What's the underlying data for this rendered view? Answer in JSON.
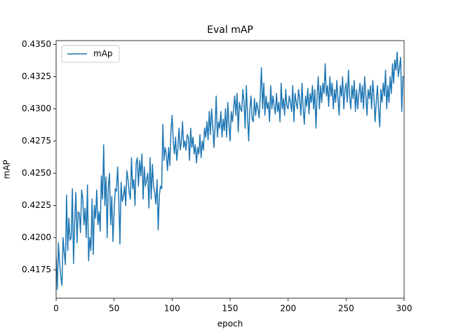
{
  "chart_data": {
    "type": "line",
    "title": "Eval mAP",
    "x_label": "epoch",
    "y_label": "mAP",
    "legend": "upper left",
    "grid": false,
    "xlim": [
      0,
      300
    ],
    "xticks": [
      0,
      50,
      100,
      150,
      200,
      250,
      300
    ],
    "ylim": [
      0.4153,
      0.4353
    ],
    "yticks": [
      0.4175,
      {
        "value": 0.42,
        "label": "0.4200"
      },
      0.4225,
      {
        "value": 0.425,
        "label": "0.4250"
      },
      0.4275,
      {
        "value": 0.43,
        "label": "0.4300"
      },
      0.4325,
      {
        "value": 0.435,
        "label": "0.4350"
      }
    ],
    "x": [
      0,
      1,
      2,
      3,
      4,
      5,
      6,
      7,
      8,
      9,
      10,
      11,
      12,
      13,
      14,
      15,
      16,
      17,
      18,
      19,
      20,
      21,
      22,
      23,
      24,
      25,
      26,
      27,
      28,
      29,
      30,
      31,
      32,
      33,
      34,
      35,
      36,
      37,
      38,
      39,
      40,
      41,
      42,
      43,
      44,
      45,
      46,
      47,
      48,
      49,
      50,
      51,
      52,
      53,
      54,
      55,
      56,
      57,
      58,
      59,
      60,
      61,
      62,
      63,
      64,
      65,
      66,
      67,
      68,
      69,
      70,
      71,
      72,
      73,
      74,
      75,
      76,
      77,
      78,
      79,
      80,
      81,
      82,
      83,
      84,
      85,
      86,
      87,
      88,
      89,
      90,
      91,
      92,
      93,
      94,
      95,
      96,
      97,
      98,
      99,
      100,
      101,
      102,
      103,
      104,
      105,
      106,
      107,
      108,
      109,
      110,
      111,
      112,
      113,
      114,
      115,
      116,
      117,
      118,
      119,
      120,
      121,
      122,
      123,
      124,
      125,
      126,
      127,
      128,
      129,
      130,
      131,
      132,
      133,
      134,
      135,
      136,
      137,
      138,
      139,
      140,
      141,
      142,
      143,
      144,
      145,
      146,
      147,
      148,
      149,
      150,
      151,
      152,
      153,
      154,
      155,
      156,
      157,
      158,
      159,
      160,
      161,
      162,
      163,
      164,
      165,
      166,
      167,
      168,
      169,
      170,
      171,
      172,
      173,
      174,
      175,
      176,
      177,
      178,
      179,
      180,
      181,
      182,
      183,
      184,
      185,
      186,
      187,
      188,
      189,
      190,
      191,
      192,
      193,
      194,
      195,
      196,
      197,
      198,
      199,
      200,
      201,
      202,
      203,
      204,
      205,
      206,
      207,
      208,
      209,
      210,
      211,
      212,
      213,
      214,
      215,
      216,
      217,
      218,
      219,
      220,
      221,
      222,
      223,
      224,
      225,
      226,
      227,
      228,
      229,
      230,
      231,
      232,
      233,
      234,
      235,
      236,
      237,
      238,
      239,
      240,
      241,
      242,
      243,
      244,
      245,
      246,
      247,
      248,
      249,
      250,
      251,
      252,
      253,
      254,
      255,
      256,
      257,
      258,
      259,
      260,
      261,
      262,
      263,
      264,
      265,
      266,
      267,
      268,
      269,
      270,
      271,
      272,
      273,
      274,
      275,
      276,
      277,
      278,
      279,
      280,
      281,
      282,
      283,
      284,
      285,
      286,
      287,
      288,
      289,
      290,
      291,
      292,
      293,
      294,
      295,
      296,
      297,
      298,
      299,
      300
    ],
    "series": [
      {
        "name": "mAp",
        "color": "#1f77b4",
        "values": [
          0.4185,
          0.416,
          0.4196,
          0.418,
          0.417,
          0.4163,
          0.42,
          0.4188,
          0.4179,
          0.4233,
          0.419,
          0.4215,
          0.4198,
          0.42,
          0.4238,
          0.418,
          0.4212,
          0.4235,
          0.4196,
          0.422,
          0.4219,
          0.4204,
          0.4237,
          0.423,
          0.421,
          0.4223,
          0.42,
          0.4241,
          0.4182,
          0.42,
          0.419,
          0.423,
          0.4187,
          0.4225,
          0.4215,
          0.4237,
          0.421,
          0.422,
          0.4205,
          0.4248,
          0.423,
          0.4272,
          0.4225,
          0.4247,
          0.42,
          0.424,
          0.425,
          0.421,
          0.4232,
          0.4197,
          0.422,
          0.4238,
          0.4236,
          0.4255,
          0.423,
          0.4195,
          0.4243,
          0.4228,
          0.4232,
          0.424,
          0.4225,
          0.4252,
          0.4245,
          0.4235,
          0.423,
          0.4262,
          0.4238,
          0.4245,
          0.4225,
          0.4258,
          0.4262,
          0.424,
          0.426,
          0.4248,
          0.4265,
          0.423,
          0.4255,
          0.424,
          0.4245,
          0.425,
          0.4223,
          0.4262,
          0.423,
          0.4257,
          0.424,
          0.4235,
          0.4226,
          0.4245,
          0.4206,
          0.4233,
          0.424,
          0.4238,
          0.4288,
          0.426,
          0.427,
          0.4265,
          0.4252,
          0.427,
          0.4256,
          0.4283,
          0.4295,
          0.4275,
          0.4265,
          0.4278,
          0.426,
          0.427,
          0.4285,
          0.4268,
          0.4275,
          0.429,
          0.427,
          0.4275,
          0.4268,
          0.428,
          0.4278,
          0.426,
          0.4285,
          0.427,
          0.4278,
          0.4265,
          0.4272,
          0.4258,
          0.427,
          0.4265,
          0.428,
          0.4262,
          0.4275,
          0.4268,
          0.4285,
          0.4278,
          0.429,
          0.4276,
          0.4298,
          0.428,
          0.43,
          0.4288,
          0.427,
          0.4285,
          0.431,
          0.4278,
          0.429,
          0.4285,
          0.4298,
          0.4278,
          0.4292,
          0.4283,
          0.43,
          0.4278,
          0.4305,
          0.4288,
          0.4275,
          0.4298,
          0.429,
          0.43,
          0.431,
          0.4295,
          0.4312,
          0.4282,
          0.4305,
          0.43,
          0.4298,
          0.4315,
          0.4305,
          0.4285,
          0.4318,
          0.4295,
          0.4275,
          0.43,
          0.431,
          0.4292,
          0.429,
          0.4308,
          0.4295,
          0.4305,
          0.43,
          0.4293,
          0.431,
          0.4332,
          0.43,
          0.432,
          0.4295,
          0.431,
          0.43,
          0.4305,
          0.429,
          0.4318,
          0.43,
          0.431,
          0.4302,
          0.4296,
          0.4312,
          0.4298,
          0.4305,
          0.429,
          0.432,
          0.43,
          0.4308,
          0.4295,
          0.4315,
          0.4302,
          0.43,
          0.431,
          0.4305,
          0.4298,
          0.4318,
          0.429,
          0.4312,
          0.4305,
          0.43,
          0.4315,
          0.4308,
          0.4295,
          0.432,
          0.43,
          0.4288,
          0.431,
          0.4302,
          0.4316,
          0.4296,
          0.4312,
          0.4305,
          0.4318,
          0.43,
          0.4315,
          0.4285,
          0.431,
          0.4325,
          0.43,
          0.4318,
          0.4305,
          0.432,
          0.4312,
          0.4335,
          0.431,
          0.4318,
          0.4302,
          0.4325,
          0.431,
          0.432,
          0.43,
          0.4315,
          0.4305,
          0.4322,
          0.4308,
          0.4295,
          0.4318,
          0.431,
          0.4325,
          0.43,
          0.4315,
          0.432,
          0.4305,
          0.433,
          0.431,
          0.43,
          0.4318,
          0.4308,
          0.4322,
          0.4298,
          0.4315,
          0.43,
          0.4312,
          0.432,
          0.4305,
          0.4318,
          0.43,
          0.4325,
          0.431,
          0.4295,
          0.4315,
          0.4308,
          0.4318,
          0.43,
          0.4322,
          0.431,
          0.429,
          0.4305,
          0.4318,
          0.43,
          0.4286,
          0.4315,
          0.4305,
          0.432,
          0.431,
          0.433,
          0.43,
          0.4318,
          0.4305,
          0.4325,
          0.4312,
          0.4335,
          0.432,
          0.4338,
          0.433,
          0.4344,
          0.4325,
          0.4332,
          0.434,
          0.4298,
          0.4325,
          0.4325
        ]
      }
    ]
  }
}
